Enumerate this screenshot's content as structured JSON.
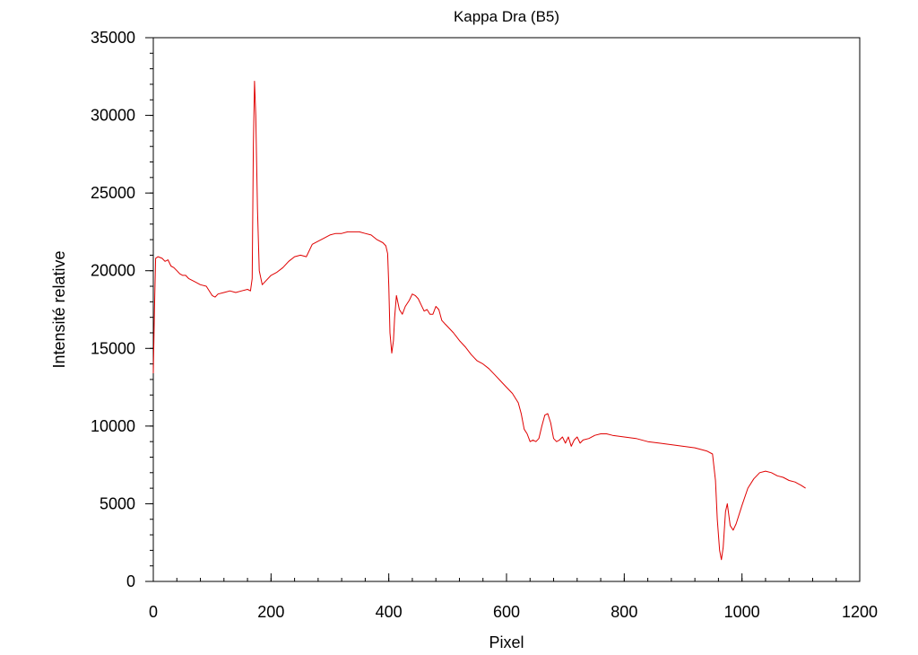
{
  "chart_data": {
    "type": "line",
    "title": "Kappa Dra (B5)",
    "xlabel": "Pixel",
    "ylabel": "Intensité relative",
    "xlim": [
      0,
      1200
    ],
    "ylim": [
      0,
      35000
    ],
    "xticks": [
      0,
      200,
      400,
      600,
      800,
      1000,
      1200
    ],
    "yticks": [
      0,
      5000,
      10000,
      15000,
      20000,
      25000,
      30000,
      35000
    ],
    "x_minor_step": 40,
    "y_minor_step": 1000,
    "grid": false,
    "colors": {
      "line": "#e00000",
      "axes": "#000000"
    },
    "series": [
      {
        "points": [
          [
            0,
            13400
          ],
          [
            2,
            17500
          ],
          [
            4,
            20800
          ],
          [
            8,
            20900
          ],
          [
            15,
            20800
          ],
          [
            20,
            20600
          ],
          [
            25,
            20700
          ],
          [
            30,
            20300
          ],
          [
            35,
            20200
          ],
          [
            40,
            20000
          ],
          [
            45,
            19800
          ],
          [
            50,
            19700
          ],
          [
            55,
            19700
          ],
          [
            60,
            19500
          ],
          [
            70,
            19300
          ],
          [
            80,
            19100
          ],
          [
            90,
            19000
          ],
          [
            100,
            18400
          ],
          [
            105,
            18300
          ],
          [
            110,
            18500
          ],
          [
            120,
            18600
          ],
          [
            130,
            18700
          ],
          [
            140,
            18600
          ],
          [
            150,
            18700
          ],
          [
            160,
            18800
          ],
          [
            165,
            18700
          ],
          [
            168,
            19500
          ],
          [
            170,
            28000
          ],
          [
            172,
            32200
          ],
          [
            174,
            30000
          ],
          [
            177,
            24000
          ],
          [
            180,
            20000
          ],
          [
            185,
            19100
          ],
          [
            190,
            19300
          ],
          [
            200,
            19700
          ],
          [
            210,
            19900
          ],
          [
            220,
            20200
          ],
          [
            230,
            20600
          ],
          [
            240,
            20900
          ],
          [
            250,
            21000
          ],
          [
            260,
            20900
          ],
          [
            270,
            21700
          ],
          [
            280,
            21900
          ],
          [
            290,
            22100
          ],
          [
            300,
            22300
          ],
          [
            310,
            22400
          ],
          [
            320,
            22400
          ],
          [
            330,
            22500
          ],
          [
            340,
            22500
          ],
          [
            350,
            22500
          ],
          [
            360,
            22400
          ],
          [
            370,
            22300
          ],
          [
            380,
            22000
          ],
          [
            390,
            21800
          ],
          [
            395,
            21600
          ],
          [
            398,
            21100
          ],
          [
            400,
            19000
          ],
          [
            402,
            16000
          ],
          [
            405,
            14700
          ],
          [
            408,
            15500
          ],
          [
            410,
            17000
          ],
          [
            413,
            18400
          ],
          [
            418,
            17500
          ],
          [
            423,
            17200
          ],
          [
            428,
            17700
          ],
          [
            435,
            18100
          ],
          [
            440,
            18500
          ],
          [
            445,
            18400
          ],
          [
            450,
            18200
          ],
          [
            455,
            17800
          ],
          [
            460,
            17400
          ],
          [
            465,
            17500
          ],
          [
            470,
            17200
          ],
          [
            475,
            17200
          ],
          [
            480,
            17700
          ],
          [
            485,
            17500
          ],
          [
            490,
            16800
          ],
          [
            495,
            16600
          ],
          [
            500,
            16400
          ],
          [
            510,
            16000
          ],
          [
            520,
            15500
          ],
          [
            530,
            15100
          ],
          [
            540,
            14600
          ],
          [
            550,
            14200
          ],
          [
            560,
            14000
          ],
          [
            570,
            13700
          ],
          [
            580,
            13300
          ],
          [
            590,
            12900
          ],
          [
            600,
            12500
          ],
          [
            610,
            12100
          ],
          [
            620,
            11500
          ],
          [
            625,
            10800
          ],
          [
            630,
            9800
          ],
          [
            635,
            9500
          ],
          [
            640,
            9000
          ],
          [
            645,
            9100
          ],
          [
            650,
            9000
          ],
          [
            655,
            9200
          ],
          [
            660,
            10000
          ],
          [
            665,
            10700
          ],
          [
            670,
            10800
          ],
          [
            675,
            10200
          ],
          [
            680,
            9200
          ],
          [
            685,
            9000
          ],
          [
            690,
            9100
          ],
          [
            695,
            9300
          ],
          [
            700,
            8900
          ],
          [
            705,
            9300
          ],
          [
            710,
            8700
          ],
          [
            715,
            9100
          ],
          [
            720,
            9300
          ],
          [
            725,
            8900
          ],
          [
            730,
            9100
          ],
          [
            740,
            9200
          ],
          [
            750,
            9400
          ],
          [
            760,
            9500
          ],
          [
            770,
            9500
          ],
          [
            780,
            9400
          ],
          [
            800,
            9300
          ],
          [
            820,
            9200
          ],
          [
            840,
            9000
          ],
          [
            860,
            8900
          ],
          [
            880,
            8800
          ],
          [
            900,
            8700
          ],
          [
            920,
            8600
          ],
          [
            940,
            8400
          ],
          [
            950,
            8200
          ],
          [
            955,
            6500
          ],
          [
            958,
            4000
          ],
          [
            962,
            2000
          ],
          [
            965,
            1400
          ],
          [
            968,
            2200
          ],
          [
            972,
            4500
          ],
          [
            975,
            5000
          ],
          [
            980,
            3600
          ],
          [
            985,
            3300
          ],
          [
            990,
            3700
          ],
          [
            1000,
            4900
          ],
          [
            1010,
            6000
          ],
          [
            1020,
            6600
          ],
          [
            1030,
            7000
          ],
          [
            1040,
            7100
          ],
          [
            1050,
            7000
          ],
          [
            1060,
            6800
          ],
          [
            1070,
            6700
          ],
          [
            1080,
            6500
          ],
          [
            1090,
            6400
          ],
          [
            1100,
            6200
          ],
          [
            1108,
            6000
          ]
        ]
      }
    ]
  }
}
